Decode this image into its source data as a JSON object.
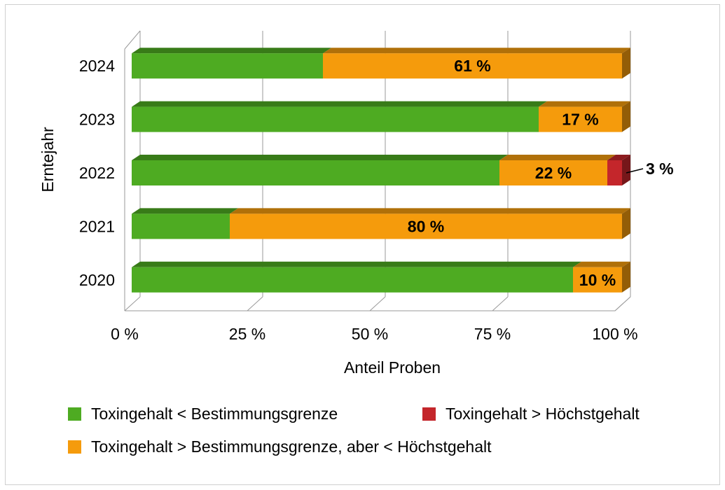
{
  "chart_data": {
    "type": "bar",
    "orientation": "horizontal",
    "stacked": true,
    "percent_stacked": true,
    "three_d": true,
    "categories": [
      "2020",
      "2021",
      "2022",
      "2023",
      "2024"
    ],
    "series": [
      {
        "name": "Toxingehalt < Bestimmungsgrenze",
        "color": "#4eab22",
        "values": [
          90,
          20,
          75,
          83,
          39
        ],
        "labels": [
          "",
          "",
          "",
          "",
          ""
        ]
      },
      {
        "name": "Toxingehalt > Bestimmungsgrenze, aber < Höchstgehalt",
        "color": "#f59b0c",
        "values": [
          10,
          80,
          22,
          17,
          61
        ],
        "labels": [
          "10 %",
          "80 %",
          "22 %",
          "17 %",
          "61 %"
        ]
      },
      {
        "name": "Toxingehalt > Höchstgehalt",
        "color": "#c4262b",
        "values": [
          0,
          0,
          3,
          0,
          0
        ],
        "labels": [
          "",
          "",
          "3 %",
          "",
          ""
        ]
      }
    ],
    "xlabel": "Anteil Proben",
    "ylabel": "Erntejahr",
    "xlim": [
      0,
      100
    ],
    "xticks": [
      "0 %",
      "25 %",
      "50 %",
      "75 %",
      "100 %"
    ],
    "grid": true,
    "legend_position": "bottom"
  }
}
